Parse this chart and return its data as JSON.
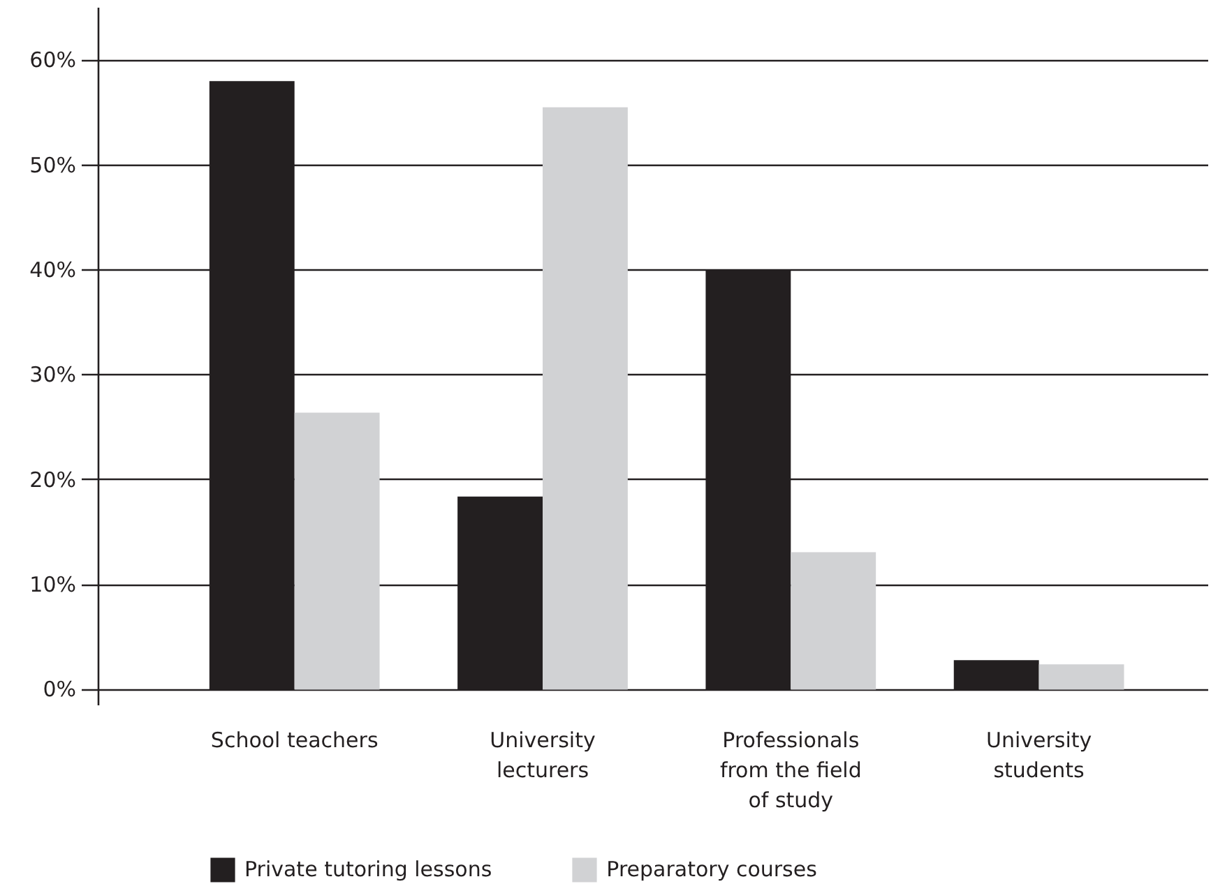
{
  "chart_data": {
    "type": "bar",
    "categories": [
      "School teachers",
      "University\nlecturers",
      "Professionals\nfrom the field\nof study",
      "University\nstudents"
    ],
    "series": [
      {
        "name": "Private tutoring lessons",
        "color": "#231f20",
        "values": [
          58,
          18.4,
          40,
          2.8
        ]
      },
      {
        "name": "Preparatory courses",
        "color": "#d1d2d4",
        "values": [
          26.4,
          55.5,
          13.1,
          2.4
        ]
      }
    ],
    "ylim": [
      -1.5,
      65
    ],
    "yticks": [
      {
        "value": 0,
        "label": "0%"
      },
      {
        "value": 10,
        "label": "10%"
      },
      {
        "value": 20,
        "label": "20%"
      },
      {
        "value": 30,
        "label": "30%"
      },
      {
        "value": 40,
        "label": "40%"
      },
      {
        "value": 50,
        "label": "50%"
      },
      {
        "value": 60,
        "label": "60%"
      }
    ],
    "grid": "y",
    "legend": "bottom"
  }
}
